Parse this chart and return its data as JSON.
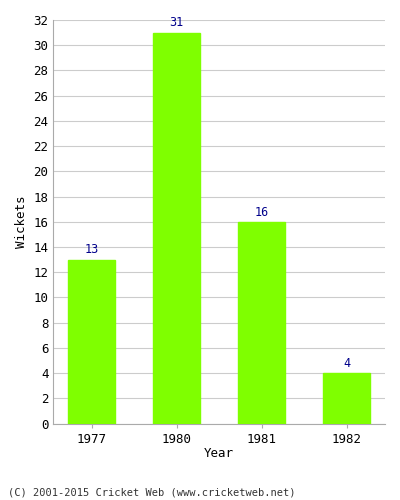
{
  "categories": [
    "1977",
    "1980",
    "1981",
    "1982"
  ],
  "values": [
    13,
    31,
    16,
    4
  ],
  "bar_color": "#7fff00",
  "label_color": "#00008b",
  "xlabel": "Year",
  "ylabel": "Wickets",
  "ylim": [
    0,
    32
  ],
  "yticks": [
    0,
    2,
    4,
    6,
    8,
    10,
    12,
    14,
    16,
    18,
    20,
    22,
    24,
    26,
    28,
    30,
    32
  ],
  "background_color": "#ffffff",
  "footer": "(C) 2001-2015 Cricket Web (www.cricketweb.net)",
  "bar_width": 0.55,
  "grid_color": "#cccccc",
  "label_fontsize": 8.5,
  "axis_fontsize": 9,
  "footer_fontsize": 7.5
}
